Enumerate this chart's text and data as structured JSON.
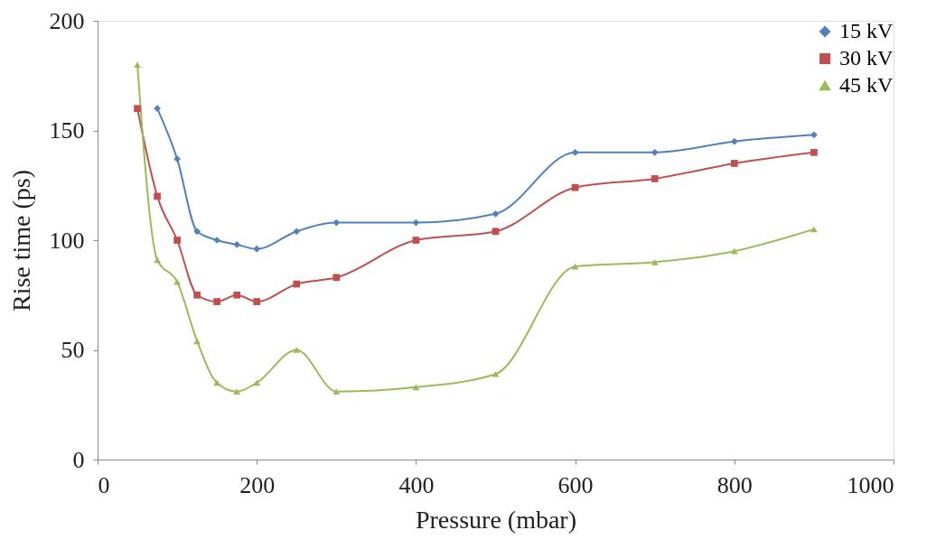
{
  "chart_data": {
    "type": "line",
    "xlabel": "Pressure  (mbar)",
    "ylabel": "Rise  time  (ps)",
    "xlim": [
      0,
      1000
    ],
    "xticks": [
      0,
      200,
      400,
      600,
      800,
      1000
    ],
    "ylim": [
      0,
      200
    ],
    "yticks": [
      0,
      50,
      100,
      150,
      200
    ],
    "grid": false,
    "legend": "top right",
    "line_style": "solid",
    "series": [
      {
        "name": "15 kV",
        "color": "#4f81bd",
        "marker": "diamond",
        "x": [
          75,
          100,
          125,
          150,
          175,
          200,
          250,
          300,
          400,
          500,
          600,
          700,
          800,
          900
        ],
        "values": [
          160,
          137,
          104,
          100,
          98,
          96,
          104,
          108,
          108,
          112,
          140,
          140,
          145,
          148
        ]
      },
      {
        "name": "30 kV",
        "color": "#c0504d",
        "marker": "square",
        "x": [
          50,
          75,
          100,
          125,
          150,
          175,
          200,
          250,
          300,
          400,
          500,
          600,
          700,
          800,
          900
        ],
        "values": [
          160,
          120,
          100,
          75,
          72,
          75,
          72,
          80,
          83,
          100,
          104,
          124,
          128,
          135,
          140
        ]
      },
      {
        "name": "45 kV",
        "color": "#9bbb59",
        "marker": "triangle",
        "x": [
          50,
          75,
          100,
          125,
          150,
          175,
          200,
          250,
          300,
          400,
          500,
          600,
          700,
          800,
          900
        ],
        "values": [
          180,
          91,
          81,
          54,
          35,
          31,
          35,
          50,
          31,
          33,
          39,
          88,
          90,
          95,
          105
        ]
      }
    ]
  }
}
